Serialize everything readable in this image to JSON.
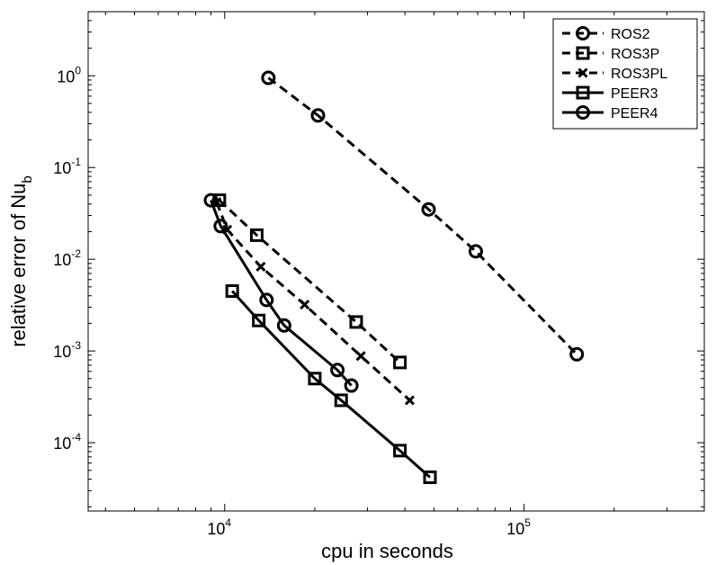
{
  "chart_data": {
    "type": "line",
    "title": "",
    "xlabel": "cpu in seconds",
    "ylabel_base": "relative error of Nu",
    "ylabel_sub": "b",
    "xscale": "log",
    "yscale": "log",
    "xlim": [
      3500,
      400000
    ],
    "ylim": [
      1.8e-05,
      5
    ],
    "grid": false,
    "legend_position": "top-right",
    "x_ticks": [
      {
        "value": 10000,
        "base": "10",
        "exp": "4"
      },
      {
        "value": 100000,
        "base": "10",
        "exp": "5"
      }
    ],
    "y_ticks": [
      {
        "value": 0.0001,
        "base": "10",
        "exp": "-4"
      },
      {
        "value": 0.001,
        "base": "10",
        "exp": "-3"
      },
      {
        "value": 0.01,
        "base": "10",
        "exp": "-2"
      },
      {
        "value": 0.1,
        "base": "10",
        "exp": "-1"
      },
      {
        "value": 1,
        "base": "10",
        "exp": "0"
      }
    ],
    "series": [
      {
        "name": "ROS2",
        "line": "dashed",
        "marker": "circle",
        "x": [
          14000,
          20500,
          48000,
          69000,
          150000
        ],
        "y": [
          0.95,
          0.37,
          0.035,
          0.0122,
          0.00092
        ]
      },
      {
        "name": "ROS3P",
        "line": "dashed",
        "marker": "square",
        "x": [
          9600,
          12800,
          27500,
          38500
        ],
        "y": [
          0.044,
          0.0183,
          0.00207,
          0.00075
        ]
      },
      {
        "name": "ROS3PL",
        "line": "dashed",
        "marker": "x",
        "x": [
          9400,
          10200,
          13200,
          18500,
          28500,
          41500
        ],
        "y": [
          0.042,
          0.021,
          0.0083,
          0.0032,
          0.00088,
          0.00029
        ]
      },
      {
        "name": "PEER3",
        "line": "solid",
        "marker": "square",
        "x": [
          10600,
          13000,
          20000,
          24500,
          38500,
          48500
        ],
        "y": [
          0.0045,
          0.00215,
          0.0005,
          0.00029,
          8.2e-05,
          4.2e-05
        ]
      },
      {
        "name": "PEER4",
        "line": "solid",
        "marker": "circle",
        "x": [
          9000,
          9700,
          13800,
          15800,
          23800,
          26500
        ],
        "y": [
          0.044,
          0.023,
          0.0036,
          0.0019,
          0.00062,
          0.00042
        ]
      }
    ]
  }
}
